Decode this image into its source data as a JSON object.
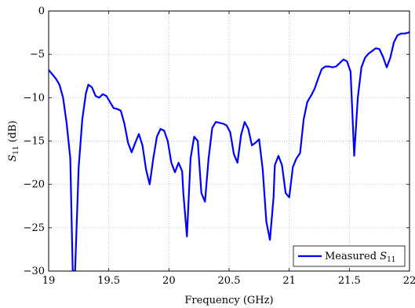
{
  "chart_data": {
    "type": "line",
    "title": "",
    "xlabel": "Frequency (GHz)",
    "ylabel_main": "S",
    "ylabel_sub": "11",
    "ylabel_unit": " (dB)",
    "xlim": [
      19,
      22
    ],
    "ylim": [
      -30,
      0
    ],
    "xticks": [
      19,
      19.5,
      20,
      20.5,
      21,
      21.5,
      22
    ],
    "xtick_labels": [
      "19",
      "19.5",
      "20",
      "20.5",
      "21",
      "21.5",
      "22"
    ],
    "yticks": [
      0,
      -5,
      -10,
      -15,
      -20,
      -25,
      -30
    ],
    "ytick_labels": [
      "0",
      "−5",
      "−10",
      "−15",
      "−20",
      "−25",
      "−30"
    ],
    "grid": true,
    "legend_position": "bottom-right",
    "series": [
      {
        "name_main": "Measured ",
        "name_italic": "S",
        "name_sub": "11",
        "color": "#0000ff",
        "x": [
          19.0,
          19.03,
          19.06,
          19.09,
          19.12,
          19.15,
          19.18,
          19.2,
          19.22,
          19.25,
          19.28,
          19.31,
          19.33,
          19.36,
          19.39,
          19.42,
          19.45,
          19.48,
          19.51,
          19.54,
          19.57,
          19.6,
          19.63,
          19.66,
          19.69,
          19.72,
          19.75,
          19.78,
          19.81,
          19.84,
          19.87,
          19.9,
          19.93,
          19.96,
          19.99,
          20.02,
          20.05,
          20.08,
          20.11,
          20.12,
          20.15,
          20.18,
          20.21,
          20.24,
          20.27,
          20.3,
          20.33,
          20.36,
          20.39,
          20.42,
          20.45,
          20.48,
          20.51,
          20.54,
          20.57,
          20.6,
          20.63,
          20.66,
          20.69,
          20.72,
          20.75,
          20.78,
          20.81,
          20.84,
          20.87,
          20.88,
          20.91,
          20.94,
          20.97,
          21.0,
          21.03,
          21.06,
          21.09,
          21.12,
          21.15,
          21.18,
          21.21,
          21.24,
          21.27,
          21.3,
          21.33,
          21.36,
          21.39,
          21.42,
          21.45,
          21.48,
          21.51,
          21.54,
          21.57,
          21.6,
          21.63,
          21.66,
          21.69,
          21.72,
          21.75,
          21.78,
          21.81,
          21.84,
          21.87,
          21.9,
          21.93,
          21.96,
          21.99,
          22.0
        ],
        "y": [
          -6.8,
          -7.3,
          -7.8,
          -8.5,
          -10,
          -13,
          -17,
          -30,
          -30,
          -18,
          -12.5,
          -9.5,
          -8.5,
          -8.8,
          -9.8,
          -10,
          -9.6,
          -9.8,
          -10.5,
          -11.2,
          -11.3,
          -11.5,
          -13,
          -15.2,
          -16.3,
          -15.2,
          -14.2,
          -15.5,
          -18.3,
          -20,
          -17,
          -14.5,
          -13.6,
          -13.8,
          -15,
          -17.5,
          -18.6,
          -17.5,
          -18.5,
          -21,
          -26,
          -17,
          -14.5,
          -15,
          -21,
          -22,
          -17,
          -13.5,
          -12.8,
          -12.9,
          -13,
          -13.2,
          -14,
          -16.5,
          -17.5,
          -14.3,
          -12.8,
          -13.6,
          -15.5,
          -15.2,
          -14.8,
          -18.3,
          -24.3,
          -26.4,
          -21.5,
          -17.8,
          -16.7,
          -17.8,
          -21,
          -21.5,
          -18,
          -17,
          -16.4,
          -12.5,
          -10.5,
          -9.8,
          -9,
          -7.8,
          -6.7,
          -6.4,
          -6.4,
          -6.5,
          -6.4,
          -6,
          -5.6,
          -5.8,
          -7,
          -16.7,
          -10,
          -6.5,
          -5.4,
          -4.9,
          -4.6,
          -4.3,
          -4.4,
          -5.3,
          -6.5,
          -5.4,
          -3.6,
          -2.8,
          -2.6,
          -2.6,
          -2.5,
          -2.4
        ]
      }
    ]
  }
}
